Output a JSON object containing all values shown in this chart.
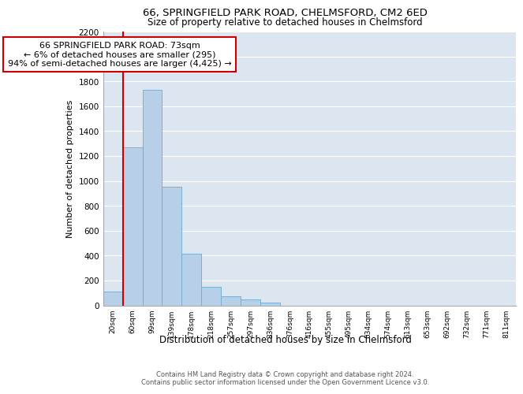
{
  "title1": "66, SPRINGFIELD PARK ROAD, CHELMSFORD, CM2 6ED",
  "title2": "Size of property relative to detached houses in Chelmsford",
  "xlabel": "Distribution of detached houses by size in Chelmsford",
  "ylabel": "Number of detached properties",
  "categories": [
    "20sqm",
    "60sqm",
    "99sqm",
    "139sqm",
    "178sqm",
    "218sqm",
    "257sqm",
    "297sqm",
    "336sqm",
    "376sqm",
    "416sqm",
    "455sqm",
    "495sqm",
    "534sqm",
    "574sqm",
    "613sqm",
    "653sqm",
    "692sqm",
    "732sqm",
    "771sqm",
    "811sqm"
  ],
  "values": [
    110,
    1270,
    1730,
    950,
    415,
    150,
    75,
    45,
    25,
    0,
    0,
    0,
    0,
    0,
    0,
    0,
    0,
    0,
    0,
    0,
    0
  ],
  "bar_color": "#b8cfe8",
  "bar_edge_color": "#7aafd4",
  "vline_color": "#cc0000",
  "annotation_text": "66 SPRINGFIELD PARK ROAD: 73sqm\n← 6% of detached houses are smaller (295)\n94% of semi-detached houses are larger (4,425) →",
  "annotation_box_color": "#ffffff",
  "annotation_box_edge": "#cc0000",
  "ylim": [
    0,
    2200
  ],
  "yticks": [
    0,
    200,
    400,
    600,
    800,
    1000,
    1200,
    1400,
    1600,
    1800,
    2000,
    2200
  ],
  "bg_color": "#dce6f0",
  "grid_color": "#ffffff",
  "footer1": "Contains HM Land Registry data © Crown copyright and database right 2024.",
  "footer2": "Contains public sector information licensed under the Open Government Licence v3.0."
}
